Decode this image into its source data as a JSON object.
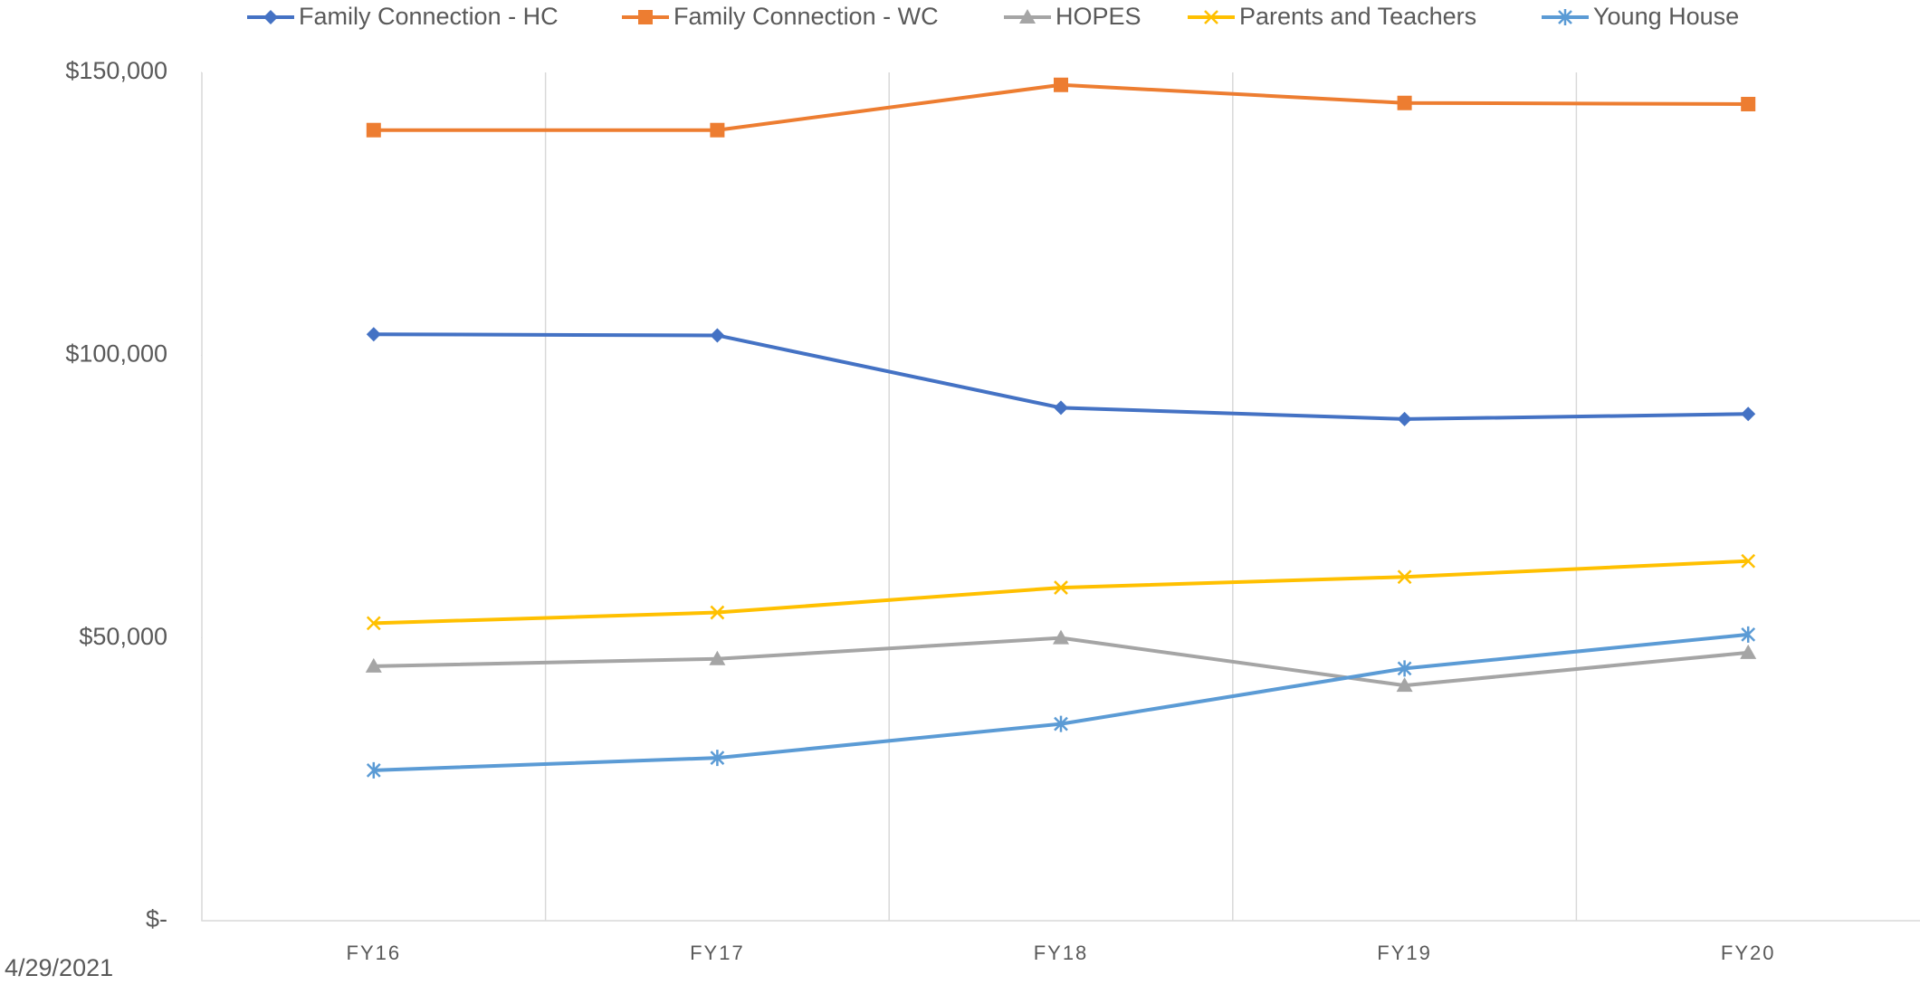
{
  "chart_data": {
    "type": "line",
    "categories": [
      "FY16",
      "FY17",
      "FY18",
      "FY19",
      "FY20"
    ],
    "series": [
      {
        "name": "Family Connection - HC",
        "color": "#4472c4",
        "marker": "diamond",
        "values": [
          103700,
          103500,
          90700,
          88700,
          89600
        ]
      },
      {
        "name": "Family Connection - WC",
        "color": "#ed7d31",
        "marker": "square",
        "values": [
          139800,
          139800,
          147800,
          144600,
          144400
        ]
      },
      {
        "name": "HOPES",
        "color": "#a5a5a5",
        "marker": "triangle",
        "values": [
          45000,
          46300,
          50000,
          41600,
          47400
        ]
      },
      {
        "name": "Parents and Teachers",
        "color": "#ffc000",
        "marker": "x",
        "values": [
          52600,
          54500,
          58900,
          60800,
          63600
        ]
      },
      {
        "name": "Young House",
        "color": "#5b9bd5",
        "marker": "asterisk",
        "values": [
          26600,
          28800,
          34800,
          44600,
          50600
        ]
      }
    ],
    "ylim": [
      0,
      150000
    ],
    "yticks": [
      {
        "value": 0,
        "label": "$-"
      },
      {
        "value": 50000,
        "label": "$50,000"
      },
      {
        "value": 100000,
        "label": "$100,000"
      },
      {
        "value": 150000,
        "label": "$150,000"
      }
    ],
    "grid": "x",
    "legend": "top",
    "date": "4/29/2021"
  }
}
